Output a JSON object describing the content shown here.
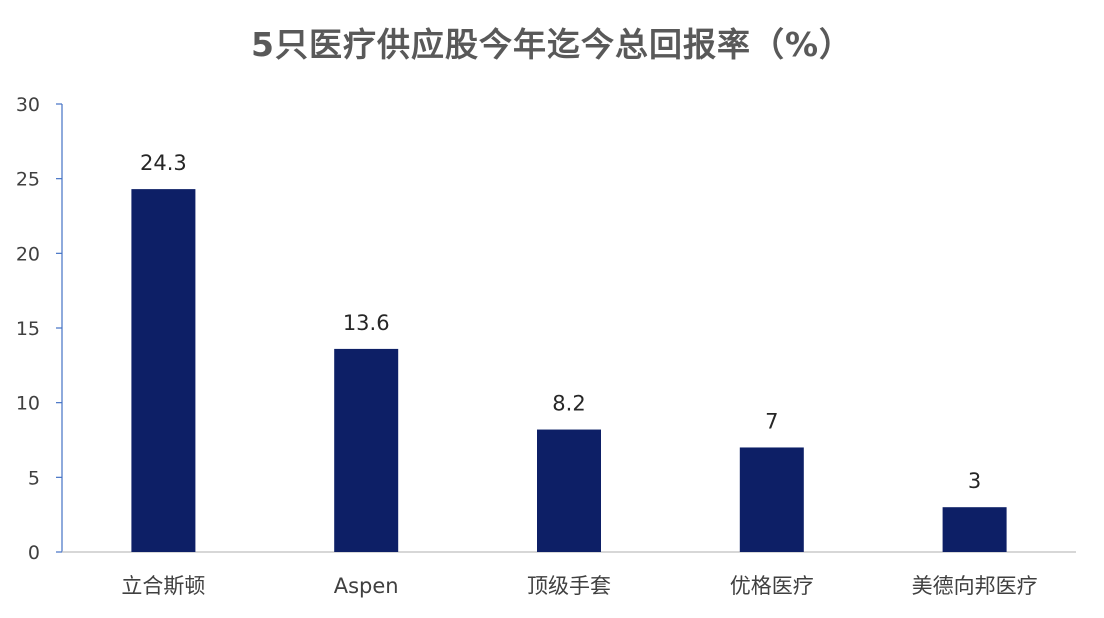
{
  "chart_data": {
    "type": "bar",
    "title": "5只医疗供应股今年迄今总回报率（%）",
    "categories": [
      "立合斯顿",
      "Aspen",
      "顶级手套",
      "优格医疗",
      "美德向邦医疗"
    ],
    "values": [
      24.3,
      13.6,
      8.2,
      7,
      3
    ],
    "data_labels": [
      "24.3",
      "13.6",
      "8.2",
      "7",
      "3"
    ],
    "ylim": [
      0,
      30
    ],
    "yticks": [
      0,
      5,
      10,
      15,
      20,
      25,
      30
    ],
    "grid": false,
    "bar_color": "#0d1f66",
    "axis_color": "#4472c4"
  }
}
